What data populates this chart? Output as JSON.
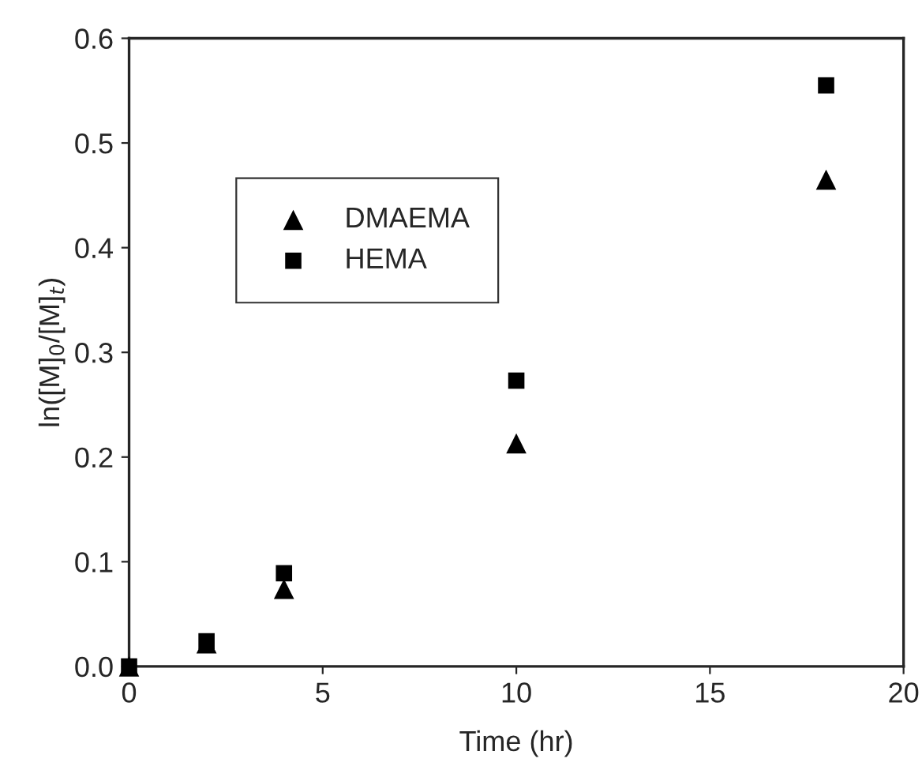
{
  "chart_data": {
    "type": "scatter",
    "xlabel": "Time (hr)",
    "ylabel": "ln([M]$_{0}$/[M]$_{t}$)",
    "series": [
      {
        "name": "DMAEMA",
        "color": "#000000",
        "marker": "triangle",
        "x": [
          0,
          2,
          4,
          10,
          18
        ],
        "values": [
          0.0,
          0.022,
          0.074,
          0.213,
          0.465
        ]
      },
      {
        "name": "HEMA",
        "color": "#000000",
        "marker": "square",
        "x": [
          0,
          2,
          4,
          10,
          18
        ],
        "values": [
          0.0,
          0.024,
          0.089,
          0.273,
          0.555
        ]
      }
    ],
    "xlim": [
      0,
      20
    ],
    "xticks": [
      0,
      5,
      10,
      15,
      20
    ],
    "ylim": [
      0,
      0.6
    ],
    "yticks": [
      {
        "value": 0,
        "label": "0.0"
      },
      0.1,
      0.2,
      0.3,
      0.4,
      0.5,
      0.6
    ],
    "grid": false,
    "legend": "top left"
  }
}
